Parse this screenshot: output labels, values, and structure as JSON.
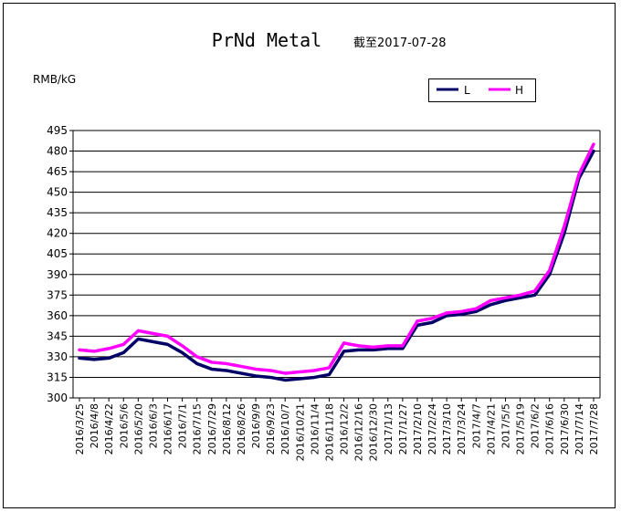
{
  "chart_data": {
    "type": "line",
    "title": "PrNd Metal",
    "subtitle": "截至2017-07-28",
    "ylabel": "RMB/kG",
    "xlabel": "",
    "ylim": [
      300,
      495
    ],
    "y_ticks": [
      300,
      315,
      330,
      345,
      360,
      375,
      390,
      405,
      420,
      435,
      450,
      465,
      480,
      495
    ],
    "grid": true,
    "legend_position": "top-right",
    "categories": [
      "2016/3/25",
      "2016/4/8",
      "2016/4/22",
      "2016/5/6",
      "2016/5/20",
      "2016/6/3",
      "2016/6/17",
      "2016/7/1",
      "2016/7/15",
      "2016/7/29",
      "2016/8/12",
      "2016/8/26",
      "2016/9/9",
      "2016/9/23",
      "2016/10/7",
      "2016/10/21",
      "2016/11/4",
      "2016/11/18",
      "2016/12/2",
      "2016/12/16",
      "2016/12/30",
      "2017/1/13",
      "2017/1/27",
      "2017/2/10",
      "2017/2/24",
      "2017/3/10",
      "2017/3/24",
      "2017/4/7",
      "2017/4/21",
      "2017/5/5",
      "2017/5/19",
      "2017/6/2",
      "2017/6/16",
      "2017/6/30",
      "2017/7/14",
      "2017/7/28"
    ],
    "series": [
      {
        "name": "L",
        "color": "#000066",
        "values": [
          329,
          328,
          329,
          333,
          343,
          341,
          339,
          333,
          325,
          321,
          320,
          318,
          316,
          315,
          313,
          314,
          315,
          317,
          334,
          335,
          335,
          336,
          336,
          353,
          355,
          360,
          361,
          363,
          368,
          371,
          373,
          375,
          390,
          420,
          460,
          480
        ]
      },
      {
        "name": "H",
        "color": "#ff00ff",
        "values": [
          335,
          334,
          336,
          339,
          349,
          347,
          345,
          338,
          330,
          326,
          325,
          323,
          321,
          320,
          318,
          319,
          320,
          322,
          340,
          338,
          337,
          338,
          338,
          356,
          358,
          362,
          363,
          365,
          371,
          373,
          375,
          378,
          393,
          425,
          463,
          485
        ]
      }
    ]
  }
}
